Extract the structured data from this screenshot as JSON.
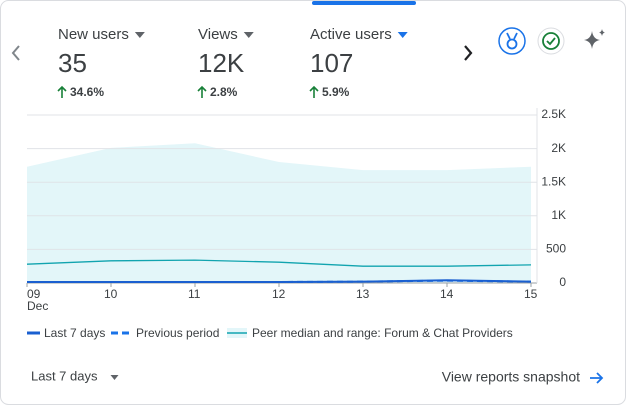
{
  "metrics": [
    {
      "label": "New users",
      "value": "35",
      "change": "34.6%"
    },
    {
      "label": "Views",
      "value": "12K",
      "change": "2.8%"
    },
    {
      "label": "Active users",
      "value": "107",
      "change": "5.9%"
    }
  ],
  "selected_metric": 2,
  "chart_data": {
    "type": "line",
    "categories": [
      "09",
      "10",
      "11",
      "12",
      "13",
      "14",
      "15"
    ],
    "month_label": "Dec",
    "ylim": [
      0,
      2500
    ],
    "yticks": [
      0,
      500,
      {
        "value": 1000,
        "label": "1K"
      },
      {
        "value": 1500,
        "label": "1.5K"
      },
      {
        "value": 2000,
        "label": "2K"
      },
      {
        "value": 2500,
        "label": "2.5K"
      }
    ],
    "grid": true,
    "series": [
      {
        "name": "Last 7 days",
        "color": "#1a5fd0",
        "style": "solid",
        "values": [
          15,
          15,
          15,
          15,
          20,
          40,
          20
        ]
      },
      {
        "name": "Previous period",
        "color": "#1a73e8",
        "style": "dashed",
        "values": [
          15,
          15,
          15,
          15,
          20,
          35,
          20
        ]
      },
      {
        "name": "Peer median and range: Forum & Chat Providers",
        "color": "#12a4af",
        "style": "band",
        "values": [
          280,
          330,
          340,
          310,
          250,
          250,
          270
        ],
        "range_low": [
          0,
          0,
          0,
          0,
          0,
          0,
          0
        ],
        "range_high": [
          1730,
          2010,
          2080,
          1800,
          1680,
          1680,
          1730
        ],
        "band_color": "#e3f6f9"
      }
    ]
  },
  "period_selector": "Last 7 days",
  "link": "View reports snapshot"
}
